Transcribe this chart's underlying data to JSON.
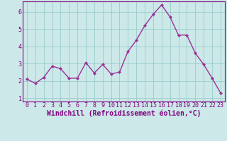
{
  "x": [
    0,
    1,
    2,
    3,
    4,
    5,
    6,
    7,
    8,
    9,
    10,
    11,
    12,
    13,
    14,
    15,
    16,
    17,
    18,
    19,
    20,
    21,
    22,
    23
  ],
  "y": [
    2.1,
    1.85,
    2.2,
    2.85,
    2.7,
    2.15,
    2.15,
    3.05,
    2.45,
    2.95,
    2.4,
    2.5,
    3.7,
    4.35,
    5.2,
    5.85,
    6.4,
    5.7,
    4.65,
    4.65,
    3.6,
    2.95,
    2.15,
    1.3
  ],
  "line_color": "#993399",
  "marker": "D",
  "marker_size": 2,
  "line_width": 1.0,
  "xlabel": "Windchill (Refroidissement éolien,°C)",
  "xlim": [
    -0.5,
    23.5
  ],
  "ylim": [
    0.8,
    6.6
  ],
  "yticks": [
    1,
    2,
    3,
    4,
    5,
    6
  ],
  "xticks": [
    0,
    1,
    2,
    3,
    4,
    5,
    6,
    7,
    8,
    9,
    10,
    11,
    12,
    13,
    14,
    15,
    16,
    17,
    18,
    19,
    20,
    21,
    22,
    23
  ],
  "bg_color": "#cce8e8",
  "grid_color": "#99cccc",
  "tick_label_color": "#800080",
  "xlabel_color": "#800080",
  "xlabel_fontsize": 7,
  "tick_fontsize": 6,
  "spine_color": "#800080"
}
